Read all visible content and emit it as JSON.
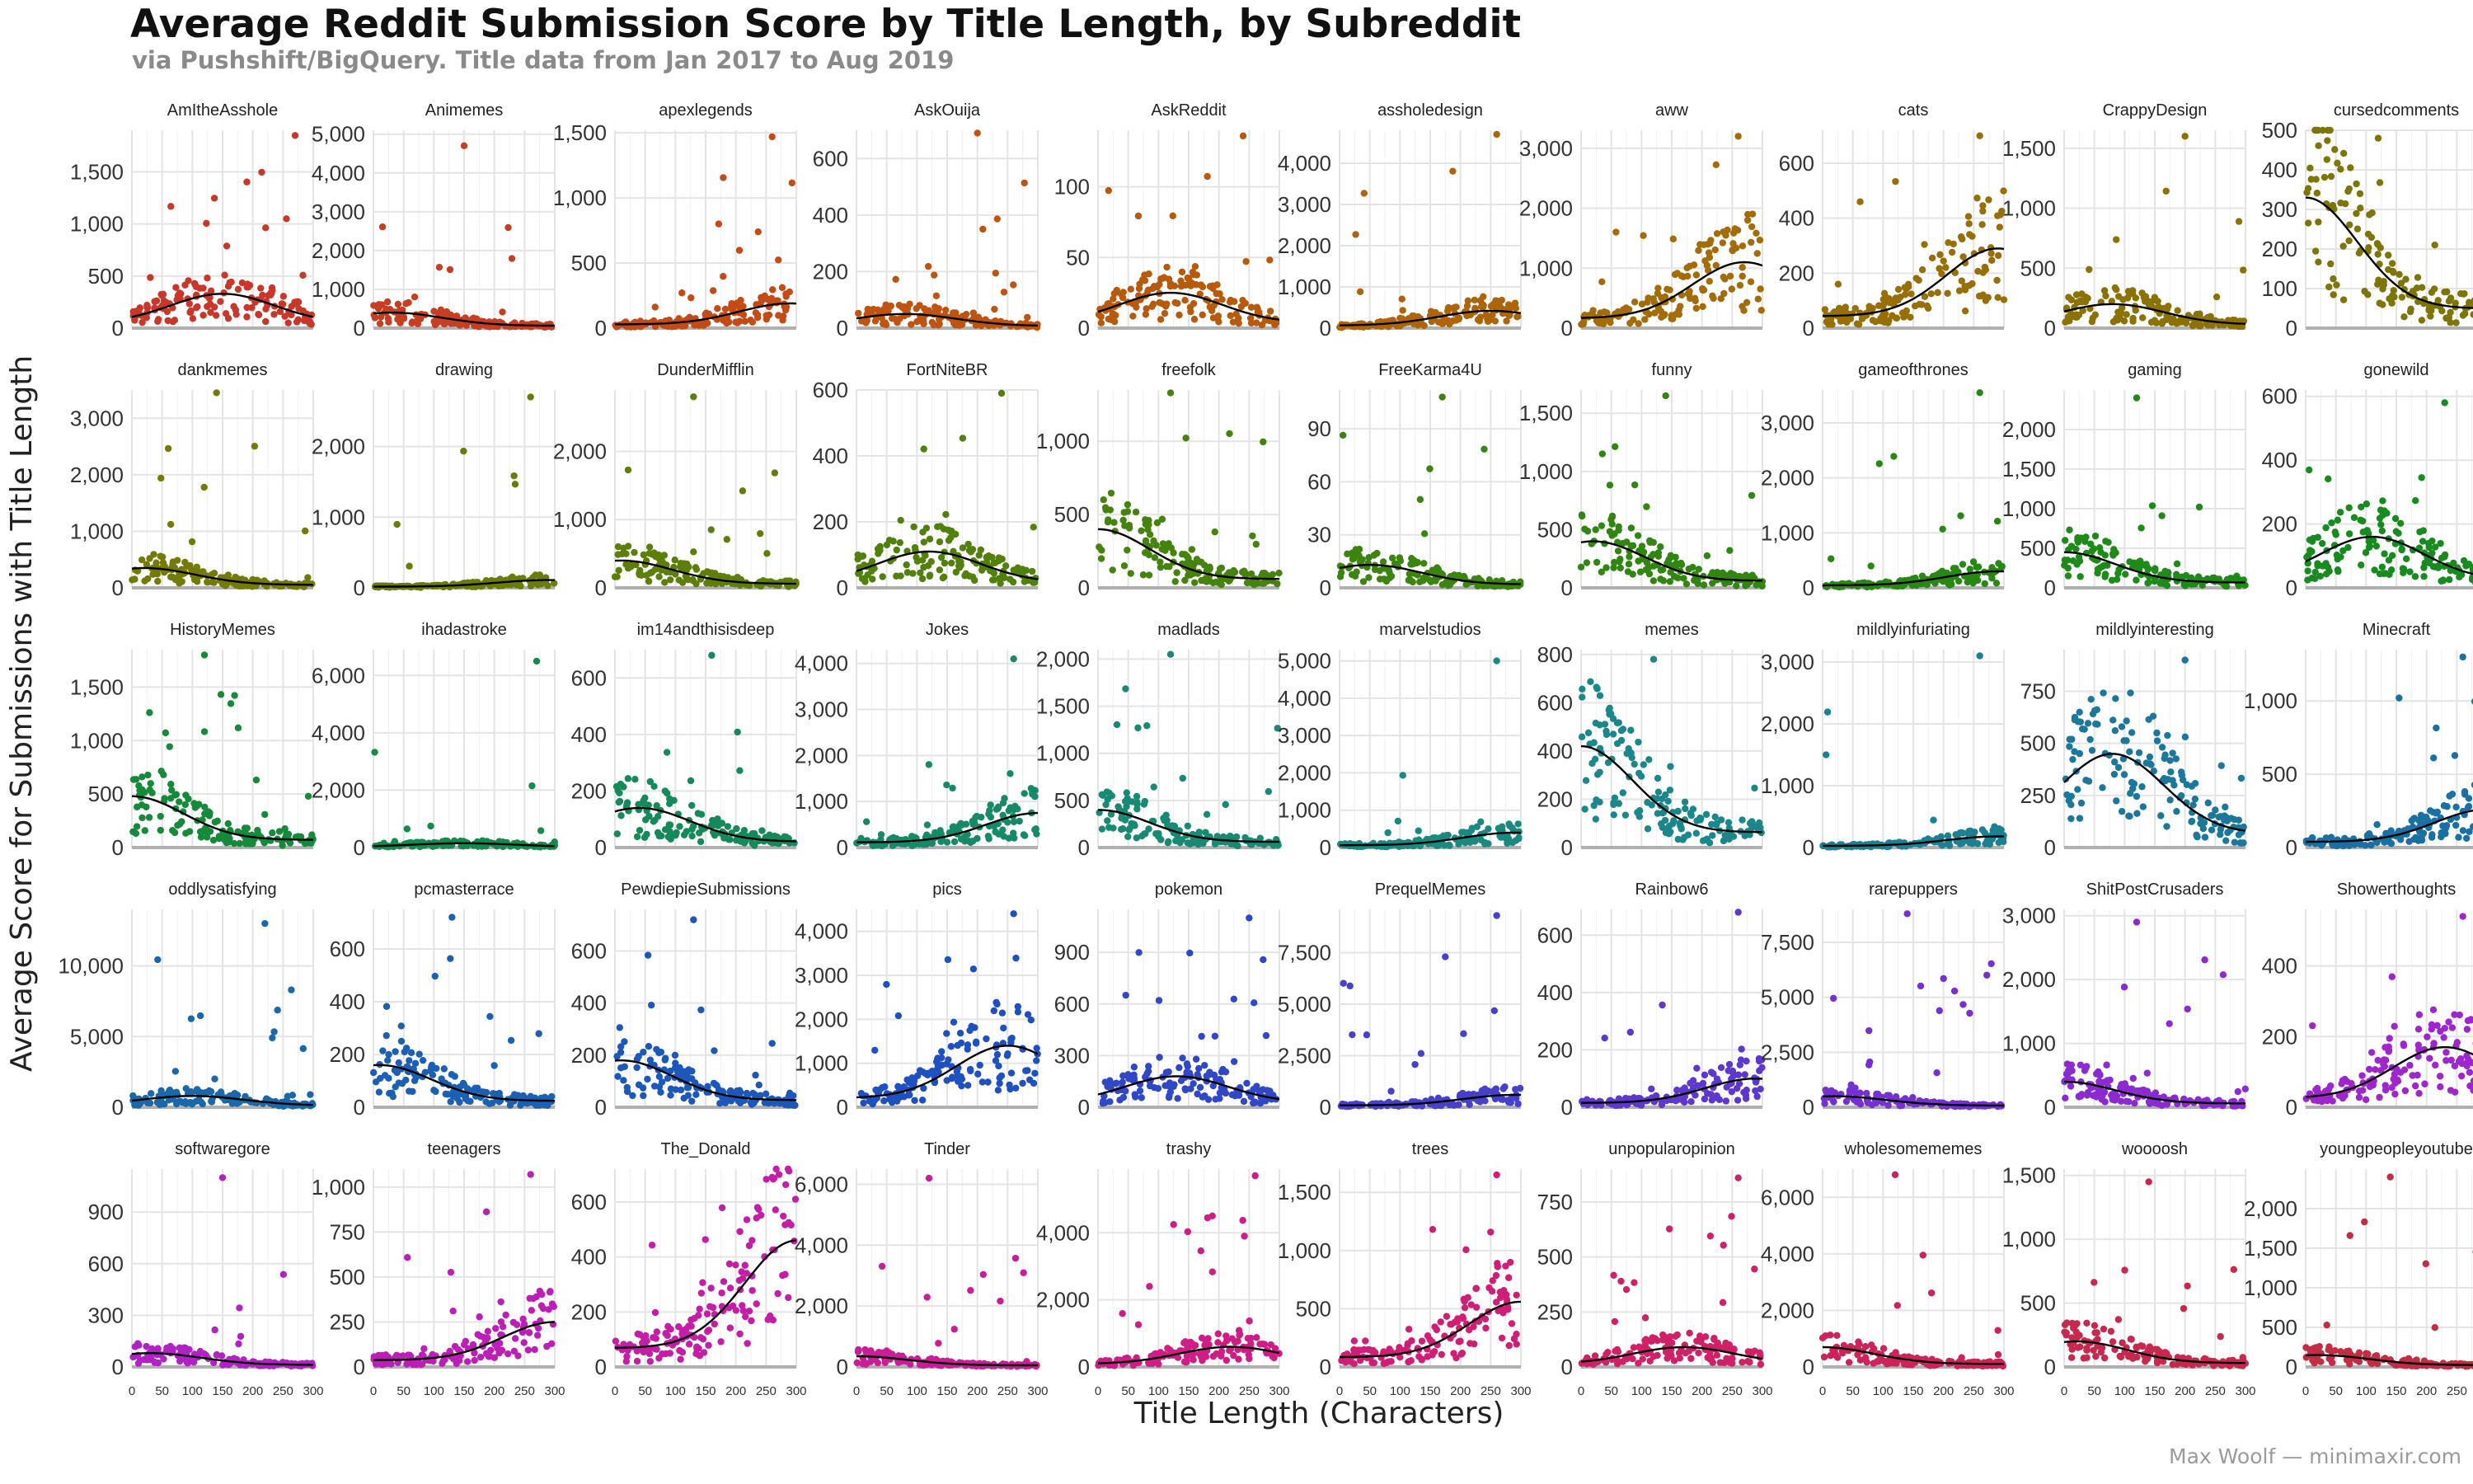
{
  "title": "Average Reddit Submission Score by Title Length, by Subreddit",
  "subtitle": "via Pushshift/BigQuery. Title data from Jan 2017 to Aug 2019",
  "credit": "Max Woolf — minimaxir.com",
  "chart_data": {
    "type": "scatter",
    "title": "Average Reddit Submission Score by Title Length, by Subreddit",
    "subtitle": "via Pushshift/BigQuery. Title data from Jan 2017 to Aug 2019",
    "xlabel": "Title Length (Characters)",
    "ylabel": "Average Score for Submissions with Title Length",
    "xlim": [
      0,
      300
    ],
    "x_ticks": [
      0,
      50,
      100,
      150,
      200,
      250,
      300
    ],
    "grid": true,
    "legend": "none",
    "trend": "smoothed fit line (black)",
    "panels": [
      {
        "name": "AmItheAsshole",
        "color": "#c8382a",
        "yticks": [
          0,
          500,
          1000,
          1500
        ],
        "ytick_labels": [
          "0",
          "500",
          "1,000",
          "1,500"
        ],
        "ymax": 1900,
        "peak_x": 150,
        "peak_y": 330,
        "max_y": 1850
      },
      {
        "name": "Animemes",
        "color": "#c73e22",
        "yticks": [
          0,
          1000,
          2000,
          3000,
          4000,
          5000
        ],
        "ytick_labels": [
          "0",
          "1,000",
          "2,000",
          "3,000",
          "4,000",
          "5,000"
        ],
        "ymax": 5100,
        "peak_x": 30,
        "peak_y": 400,
        "max_y": 4700
      },
      {
        "name": "apexlegends",
        "color": "#c44a16",
        "yticks": [
          0,
          500,
          1000,
          1500
        ],
        "ytick_labels": [
          "0",
          "500",
          "1,000",
          "1,500"
        ],
        "ymax": 1520,
        "peak_x": 290,
        "peak_y": 190,
        "max_y": 1470
      },
      {
        "name": "AskOuija",
        "color": "#bf5310",
        "yticks": [
          0,
          200,
          400,
          600
        ],
        "ytick_labels": [
          "0",
          "200",
          "400",
          "600"
        ],
        "ymax": 700,
        "peak_x": 80,
        "peak_y": 50,
        "max_y": 690
      },
      {
        "name": "AskReddit",
        "color": "#b85a0c",
        "yticks": [
          0,
          50,
          100
        ],
        "ytick_labels": [
          "0",
          "50",
          "100"
        ],
        "ymax": 140,
        "peak_x": 120,
        "peak_y": 25,
        "max_y": 136
      },
      {
        "name": "assholedesign",
        "color": "#ae650a",
        "yticks": [
          0,
          1000,
          2000,
          3000,
          4000
        ],
        "ytick_labels": [
          "0",
          "1,000",
          "2,000",
          "3,000",
          "4,000"
        ],
        "ymax": 4800,
        "peak_x": 250,
        "peak_y": 420,
        "max_y": 4700
      },
      {
        "name": "aww",
        "color": "#a46c08",
        "yticks": [
          0,
          1000,
          2000,
          3000
        ],
        "ytick_labels": [
          "0",
          "1,000",
          "2,000",
          "3,000"
        ],
        "ymax": 3300,
        "peak_x": 270,
        "peak_y": 1100,
        "max_y": 3200
      },
      {
        "name": "cats",
        "color": "#976f06",
        "yticks": [
          0,
          200,
          400,
          600
        ],
        "ytick_labels": [
          "0",
          "200",
          "400",
          "600"
        ],
        "ymax": 720,
        "peak_x": 290,
        "peak_y": 290,
        "max_y": 700
      },
      {
        "name": "CrappyDesign",
        "color": "#8b7205",
        "yticks": [
          0,
          500,
          1000,
          1500
        ],
        "ytick_labels": [
          "0",
          "500",
          "1,000",
          "1,500"
        ],
        "ymax": 1650,
        "peak_x": 80,
        "peak_y": 200,
        "max_y": 1600
      },
      {
        "name": "cursedcomments",
        "color": "#7e7507",
        "yticks": [
          0,
          100,
          200,
          300,
          400,
          500
        ],
        "ytick_labels": [
          "0",
          "100",
          "200",
          "300",
          "400",
          "500"
        ],
        "ymax": 500,
        "peak_x": 0,
        "peak_y": 330,
        "max_y": 480
      },
      {
        "name": "dankmemes",
        "color": "#747a07",
        "yticks": [
          0,
          1000,
          2000,
          3000
        ],
        "ytick_labels": [
          "0",
          "1,000",
          "2,000",
          "3,000"
        ],
        "ymax": 3500,
        "peak_x": 20,
        "peak_y": 350,
        "max_y": 3450
      },
      {
        "name": "drawing",
        "color": "#6a7c08",
        "yticks": [
          0,
          1000,
          2000
        ],
        "ytick_labels": [
          "0",
          "1,000",
          "2,000"
        ],
        "ymax": 2800,
        "peak_x": 290,
        "peak_y": 110,
        "max_y": 2700
      },
      {
        "name": "DunderMifflin",
        "color": "#5e7e0a",
        "yticks": [
          0,
          1000,
          2000
        ],
        "ytick_labels": [
          "0",
          "1,000",
          "2,000"
        ],
        "ymax": 2900,
        "peak_x": 10,
        "peak_y": 400,
        "max_y": 2800
      },
      {
        "name": "FortNiteBR",
        "color": "#52800c",
        "yticks": [
          0,
          200,
          400,
          600
        ],
        "ytick_labels": [
          "0",
          "200",
          "400",
          "600"
        ],
        "ymax": 600,
        "peak_x": 120,
        "peak_y": 110,
        "max_y": 590
      },
      {
        "name": "freefolk",
        "color": "#46820e",
        "yticks": [
          0,
          500,
          1000
        ],
        "ytick_labels": [
          "0",
          "500",
          "1,000"
        ],
        "ymax": 1350,
        "peak_x": 0,
        "peak_y": 400,
        "max_y": 1330
      },
      {
        "name": "FreeKarma4U",
        "color": "#3b8410",
        "yticks": [
          0,
          30,
          60,
          90
        ],
        "ytick_labels": [
          "0",
          "30",
          "60",
          "90"
        ],
        "ymax": 112,
        "peak_x": 50,
        "peak_y": 13,
        "max_y": 108
      },
      {
        "name": "funny",
        "color": "#318612",
        "yticks": [
          0,
          500,
          1000,
          1500
        ],
        "ytick_labels": [
          "0",
          "500",
          "1,000",
          "1,500"
        ],
        "ymax": 1700,
        "peak_x": 20,
        "peak_y": 400,
        "max_y": 1650
      },
      {
        "name": "gameofthrones",
        "color": "#278814",
        "yticks": [
          0,
          1000,
          2000,
          3000
        ],
        "ytick_labels": [
          "0",
          "1,000",
          "2,000",
          "3,000"
        ],
        "ymax": 3600,
        "peak_x": 290,
        "peak_y": 300,
        "max_y": 3550
      },
      {
        "name": "gaming",
        "color": "#1e8a18",
        "yticks": [
          0,
          500,
          1000,
          1500,
          2000
        ],
        "ytick_labels": [
          "0",
          "500",
          "1,000",
          "1,500",
          "2,000"
        ],
        "ymax": 2500,
        "peak_x": 0,
        "peak_y": 450,
        "max_y": 2400
      },
      {
        "name": "gonewild",
        "color": "#178b1f",
        "yticks": [
          0,
          200,
          400,
          600
        ],
        "ytick_labels": [
          "0",
          "200",
          "400",
          "600"
        ],
        "ymax": 620,
        "peak_x": 110,
        "peak_y": 160,
        "max_y": 580
      },
      {
        "name": "HistoryMemes",
        "color": "#148a3a",
        "yticks": [
          0,
          500,
          1000,
          1500
        ],
        "ytick_labels": [
          "0",
          "500",
          "1,000",
          "1,500"
        ],
        "ymax": 1850,
        "peak_x": 0,
        "peak_y": 480,
        "max_y": 1800
      },
      {
        "name": "ihadastroke",
        "color": "#148a4c",
        "yticks": [
          0,
          2000,
          4000,
          6000
        ],
        "ytick_labels": [
          "0",
          "2,000",
          "4,000",
          "6,000"
        ],
        "ymax": 6900,
        "peak_x": 150,
        "peak_y": 150,
        "max_y": 6500
      },
      {
        "name": "im14andthisisdeep",
        "color": "#148a5a",
        "yticks": [
          0,
          200,
          400,
          600
        ],
        "ytick_labels": [
          "0",
          "200",
          "400",
          "600"
        ],
        "ymax": 700,
        "peak_x": 40,
        "peak_y": 140,
        "max_y": 680
      },
      {
        "name": "Jokes",
        "color": "#168a68",
        "yticks": [
          0,
          1000,
          2000,
          3000,
          4000
        ],
        "ytick_labels": [
          "0",
          "1,000",
          "2,000",
          "3,000",
          "4,000"
        ],
        "ymax": 4300,
        "peak_x": 300,
        "peak_y": 750,
        "max_y": 4100
      },
      {
        "name": "madlads",
        "color": "#188a74",
        "yticks": [
          0,
          500,
          1000,
          1500,
          2000
        ],
        "ytick_labels": [
          "0",
          "500",
          "1,000",
          "1,500",
          "2,000"
        ],
        "ymax": 2100,
        "peak_x": 0,
        "peak_y": 400,
        "max_y": 2050
      },
      {
        "name": "marvelstudios",
        "color": "#1a8a80",
        "yticks": [
          0,
          1000,
          2000,
          3000,
          4000,
          5000
        ],
        "ytick_labels": [
          "0",
          "1,000",
          "2,000",
          "3,000",
          "4,000",
          "5,000"
        ],
        "ymax": 5300,
        "peak_x": 290,
        "peak_y": 400,
        "max_y": 5000
      },
      {
        "name": "memes",
        "color": "#1b878a",
        "yticks": [
          0,
          200,
          400,
          600,
          800
        ],
        "ytick_labels": [
          "0",
          "200",
          "400",
          "600",
          "800"
        ],
        "ymax": 820,
        "peak_x": 0,
        "peak_y": 420,
        "max_y": 780
      },
      {
        "name": "mildlyinfuriating",
        "color": "#1b8092",
        "yticks": [
          0,
          1000,
          2000,
          3000
        ],
        "ytick_labels": [
          "0",
          "1,000",
          "2,000",
          "3,000"
        ],
        "ymax": 3200,
        "peak_x": 290,
        "peak_y": 180,
        "max_y": 3100
      },
      {
        "name": "mildlyinteresting",
        "color": "#1b789a",
        "yticks": [
          0,
          250,
          500,
          750
        ],
        "ytick_labels": [
          "0",
          "250",
          "500",
          "750"
        ],
        "ymax": 950,
        "peak_x": 80,
        "peak_y": 450,
        "max_y": 900
      },
      {
        "name": "Minecraft",
        "color": "#1a70a2",
        "yticks": [
          0,
          500,
          1000
        ],
        "ytick_labels": [
          "0",
          "500",
          "1,000"
        ],
        "ymax": 1350,
        "peak_x": 300,
        "peak_y": 260,
        "max_y": 1300
      },
      {
        "name": "oddlysatisfying",
        "color": "#1a68aa",
        "yticks": [
          0,
          5000,
          10000
        ],
        "ytick_labels": [
          "0",
          "5,000",
          "10,000"
        ],
        "ymax": 14000,
        "peak_x": 100,
        "peak_y": 800,
        "max_y": 13000
      },
      {
        "name": "pcmasterrace",
        "color": "#1b60b2",
        "yticks": [
          0,
          200,
          400,
          600
        ],
        "ytick_labels": [
          "0",
          "200",
          "400",
          "600"
        ],
        "ymax": 750,
        "peak_x": 10,
        "peak_y": 160,
        "max_y": 720
      },
      {
        "name": "PewdiepieSubmissions",
        "color": "#1c58ba",
        "yticks": [
          0,
          200,
          400,
          600
        ],
        "ytick_labels": [
          "0",
          "200",
          "400",
          "600"
        ],
        "ymax": 760,
        "peak_x": 10,
        "peak_y": 180,
        "max_y": 720
      },
      {
        "name": "pics",
        "color": "#1f50c0",
        "yticks": [
          0,
          1000,
          2000,
          3000,
          4000
        ],
        "ytick_labels": [
          "0",
          "1,000",
          "2,000",
          "3,000",
          "4,000"
        ],
        "ymax": 4500,
        "peak_x": 250,
        "peak_y": 1400,
        "max_y": 4400
      },
      {
        "name": "pokemon",
        "color": "#3048c6",
        "yticks": [
          0,
          300,
          600,
          900
        ],
        "ytick_labels": [
          "0",
          "300",
          "600",
          "900"
        ],
        "ymax": 1150,
        "peak_x": 130,
        "peak_y": 180,
        "max_y": 1100
      },
      {
        "name": "PrequelMemes",
        "color": "#4640ca",
        "yticks": [
          0,
          2500,
          5000,
          7500
        ],
        "ytick_labels": [
          "0",
          "2,500",
          "5,000",
          "7,500"
        ],
        "ymax": 9600,
        "peak_x": 290,
        "peak_y": 600,
        "max_y": 9300
      },
      {
        "name": "Rainbow6",
        "color": "#5e38ce",
        "yticks": [
          0,
          200,
          400,
          600
        ],
        "ytick_labels": [
          "0",
          "200",
          "400",
          "600"
        ],
        "ymax": 690,
        "peak_x": 290,
        "peak_y": 100,
        "max_y": 680
      },
      {
        "name": "rarepuppers",
        "color": "#7430d0",
        "yticks": [
          0,
          2500,
          5000,
          7500
        ],
        "ytick_labels": [
          "0",
          "2,500",
          "5,000",
          "7,500"
        ],
        "ymax": 9000,
        "peak_x": 20,
        "peak_y": 500,
        "max_y": 8800
      },
      {
        "name": "ShitPostCrusaders",
        "color": "#8a2ad0",
        "yticks": [
          0,
          1000,
          2000,
          3000
        ],
        "ytick_labels": [
          "0",
          "1,000",
          "2,000",
          "3,000"
        ],
        "ymax": 3100,
        "peak_x": 0,
        "peak_y": 400,
        "max_y": 2900
      },
      {
        "name": "Showerthoughts",
        "color": "#9e26cc",
        "yticks": [
          0,
          200,
          400
        ],
        "ytick_labels": [
          "0",
          "200",
          "400"
        ],
        "ymax": 560,
        "peak_x": 230,
        "peak_y": 170,
        "max_y": 540
      },
      {
        "name": "softwaregore",
        "color": "#b022c4",
        "yticks": [
          0,
          300,
          600,
          900
        ],
        "ytick_labels": [
          "0",
          "300",
          "600",
          "900"
        ],
        "ymax": 1150,
        "peak_x": 30,
        "peak_y": 80,
        "max_y": 1100
      },
      {
        "name": "teenagers",
        "color": "#bc1fb6",
        "yticks": [
          0,
          250,
          500,
          750,
          1000
        ],
        "ytick_labels": [
          "0",
          "250",
          "500",
          "750",
          "1,000"
        ],
        "ymax": 1100,
        "peak_x": 300,
        "peak_y": 250,
        "max_y": 1070
      },
      {
        "name": "The_Donald",
        "color": "#c41ea6",
        "yticks": [
          0,
          200,
          400,
          600
        ],
        "ytick_labels": [
          "0",
          "200",
          "400",
          "600"
        ],
        "ymax": 720,
        "peak_x": 300,
        "peak_y": 460,
        "max_y": 690
      },
      {
        "name": "Tinder",
        "color": "#ca1e96",
        "yticks": [
          0,
          2000,
          4000,
          6000
        ],
        "ytick_labels": [
          "0",
          "2,000",
          "4,000",
          "6,000"
        ],
        "ymax": 6500,
        "peak_x": 0,
        "peak_y": 350,
        "max_y": 6200
      },
      {
        "name": "trashy",
        "color": "#ce1e86",
        "yticks": [
          0,
          2000,
          4000
        ],
        "ytick_labels": [
          "0",
          "2,000",
          "4,000"
        ],
        "ymax": 5900,
        "peak_x": 220,
        "peak_y": 600,
        "max_y": 5700
      },
      {
        "name": "trees",
        "color": "#d01e76",
        "yticks": [
          0,
          500,
          1000,
          1500
        ],
        "ytick_labels": [
          "0",
          "500",
          "1,000",
          "1,500"
        ],
        "ymax": 1700,
        "peak_x": 300,
        "peak_y": 560,
        "max_y": 1650
      },
      {
        "name": "unpopularopinion",
        "color": "#d02068",
        "yticks": [
          0,
          250,
          500,
          750
        ],
        "ytick_labels": [
          "0",
          "250",
          "500",
          "750"
        ],
        "ymax": 900,
        "peak_x": 170,
        "peak_y": 90,
        "max_y": 860
      },
      {
        "name": "wholesomememes",
        "color": "#cc245a",
        "yticks": [
          0,
          2000,
          4000,
          6000
        ],
        "ytick_labels": [
          "0",
          "2,000",
          "4,000",
          "6,000"
        ],
        "ymax": 7000,
        "peak_x": 0,
        "peak_y": 700,
        "max_y": 6800
      },
      {
        "name": "woooosh",
        "color": "#c8284e",
        "yticks": [
          0,
          500,
          1000,
          1500
        ],
        "ytick_labels": [
          "0",
          "500",
          "1,000",
          "1,500"
        ],
        "ymax": 1550,
        "peak_x": 20,
        "peak_y": 200,
        "max_y": 1450
      },
      {
        "name": "youngpeopleyoutube",
        "color": "#c42c44",
        "yticks": [
          0,
          500,
          1000,
          1500,
          2000
        ],
        "ytick_labels": [
          "0",
          "500",
          "1,000",
          "1,500",
          "2,000"
        ],
        "ymax": 2500,
        "peak_x": 20,
        "peak_y": 150,
        "max_y": 2400
      }
    ]
  }
}
